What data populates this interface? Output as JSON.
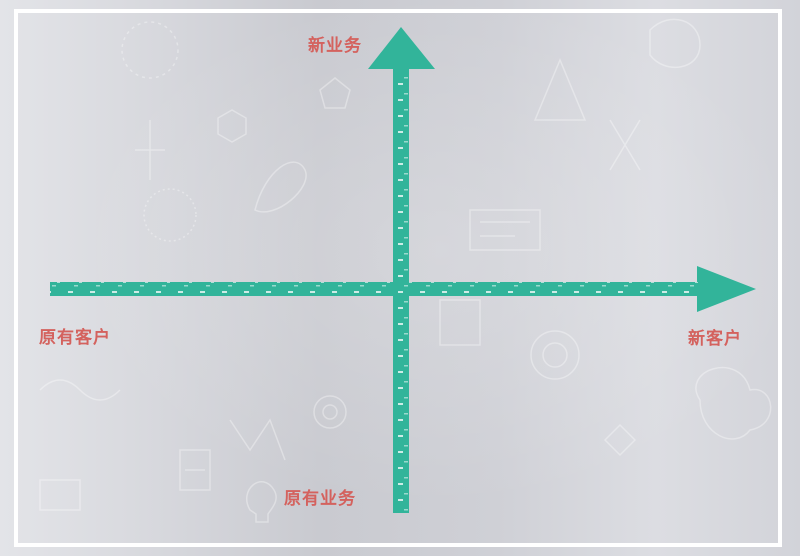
{
  "diagram": {
    "axis_labels": {
      "top": "新业务",
      "bottom": "原有业务",
      "left": "原有客户",
      "right": "新客户"
    },
    "colors": {
      "axis": "#32b49a",
      "label": "#d4625e",
      "frame": "#ffffff"
    }
  }
}
